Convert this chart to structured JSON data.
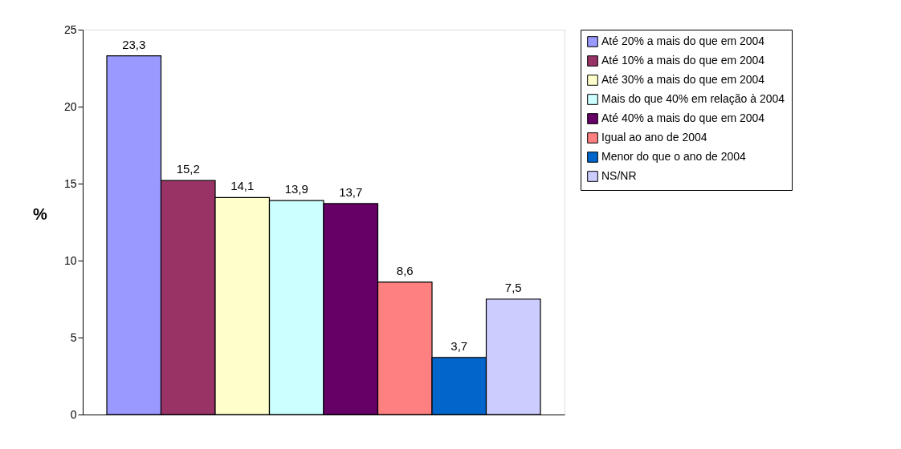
{
  "chart_data": {
    "type": "bar",
    "ylabel": "%",
    "categories": [
      null
    ],
    "ylim": [
      0,
      25
    ],
    "yticks": [
      0,
      5,
      10,
      15,
      20,
      25
    ],
    "grid": false,
    "legend": "right",
    "tick_labels": "y",
    "series": [
      {
        "name": "Até 20% a mais do que em 2004",
        "color": "#9999ff",
        "values": [
          23.3
        ],
        "value_labels": [
          "23,3"
        ]
      },
      {
        "name": "Até 10% a mais do que em 2004",
        "color": "#993366",
        "values": [
          15.2
        ],
        "value_labels": [
          "15,2"
        ]
      },
      {
        "name": "Até 30% a mais do que em 2004",
        "color": "#ffffcc",
        "values": [
          14.1
        ],
        "value_labels": [
          "14,1"
        ]
      },
      {
        "name": "Mais do que 40% em relação à 2004",
        "color": "#ccffff",
        "values": [
          13.9
        ],
        "value_labels": [
          "13,9"
        ]
      },
      {
        "name": "Até 40% a mais do que em 2004",
        "color": "#660066",
        "values": [
          13.7
        ],
        "value_labels": [
          "13,7"
        ]
      },
      {
        "name": "Igual ao ano de 2004",
        "color": "#ff8080",
        "values": [
          8.6
        ],
        "value_labels": [
          "8,6"
        ]
      },
      {
        "name": "Menor do que o ano de 2004",
        "color": "#0066cc",
        "values": [
          3.7
        ],
        "value_labels": [
          "3,7"
        ]
      },
      {
        "name": "NS/NR",
        "color": "#ccccff",
        "values": [
          7.5
        ],
        "value_labels": [
          "7,5"
        ]
      }
    ]
  }
}
